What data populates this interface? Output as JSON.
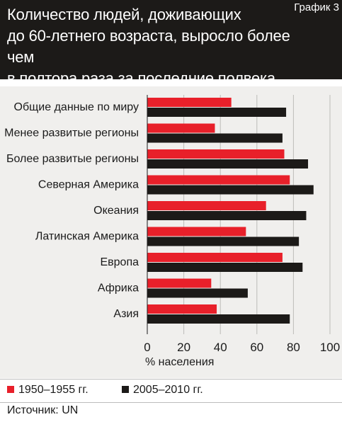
{
  "header": {
    "title_lines": [
      "Количество людей, доживающих",
      "до 60-летнего возраста, выросло более чем",
      "в полтора раза за последние полвека"
    ],
    "tag": "График 3"
  },
  "chart_data": {
    "type": "bar",
    "orientation": "horizontal",
    "categories": [
      "Общие данные по миру",
      "Менее развитые регионы",
      "Более развитые регионы",
      "Северная Америка",
      "Океания",
      "Латинская Америка",
      "Европа",
      "Африка",
      "Азия"
    ],
    "series": [
      {
        "name": "1950–1955 гг.",
        "color": "#e8202a",
        "values": [
          46,
          37,
          75,
          78,
          65,
          54,
          74,
          35,
          38
        ]
      },
      {
        "name": "2005–2010 гг.",
        "color": "#1c1a18",
        "values": [
          76,
          74,
          88,
          91,
          87,
          83,
          85,
          55,
          78
        ]
      }
    ],
    "xlim": [
      0,
      100
    ],
    "xticks": [
      0,
      20,
      40,
      60,
      80,
      100
    ],
    "xlabel": "% населения",
    "grid": true
  },
  "legend": {
    "items": [
      {
        "label": "1950–1955 гг.",
        "color": "#e8202a"
      },
      {
        "label": "2005–2010 гг.",
        "color": "#1c1a18"
      }
    ]
  },
  "source": "Источник: UN"
}
